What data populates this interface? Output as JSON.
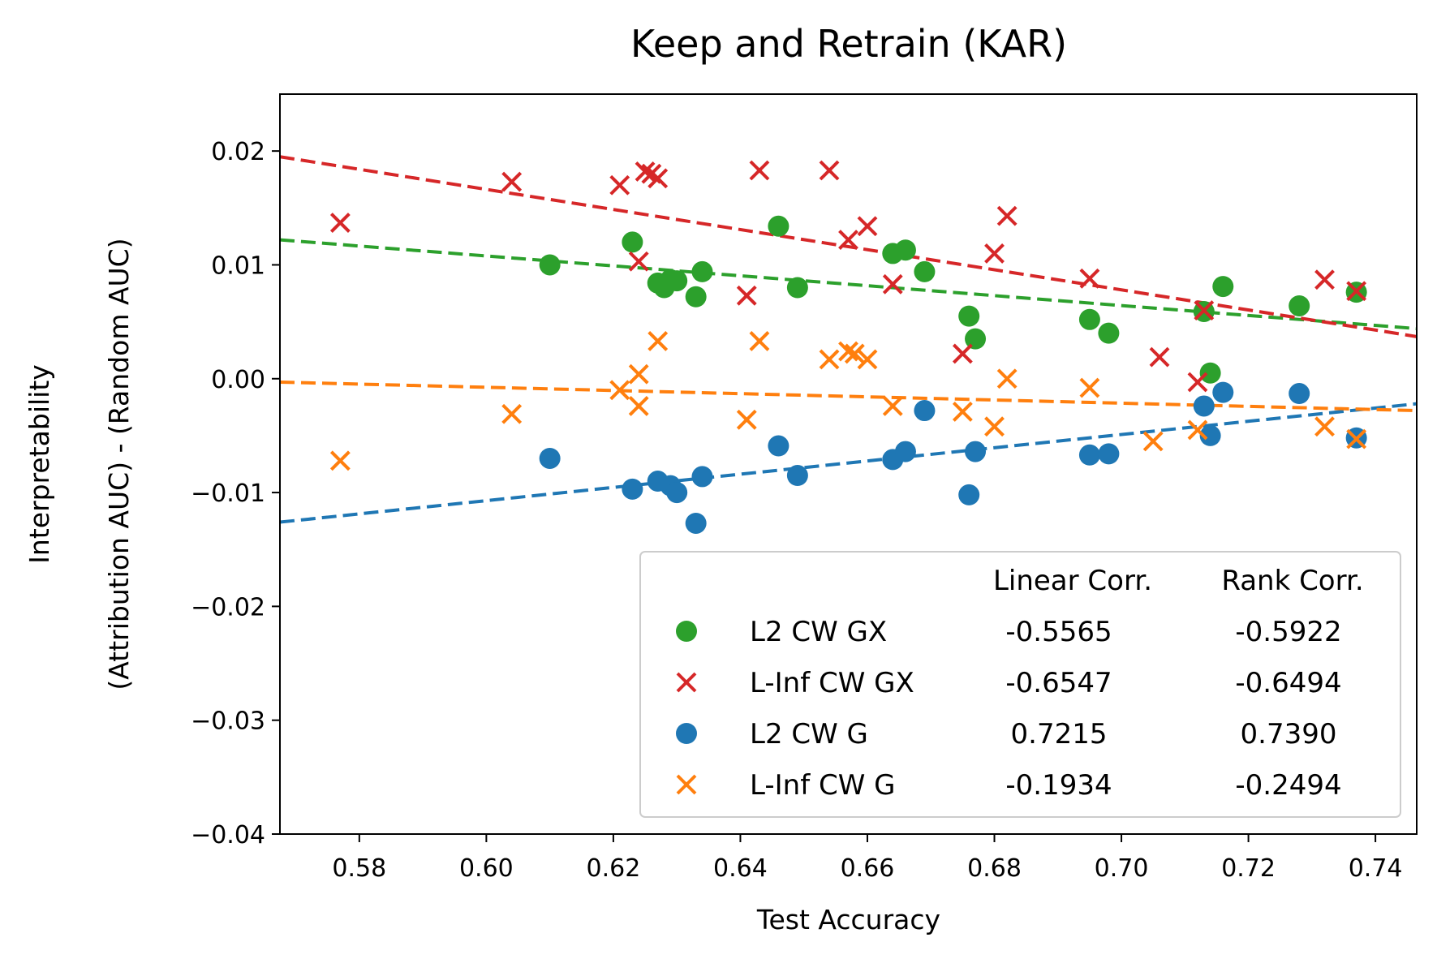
{
  "chart_data": {
    "type": "scatter",
    "title": "Keep and Retrain (KAR)",
    "xlabel": "Test Accuracy",
    "ylabel_lines": [
      "Interpretability",
      "(Attribution AUC) - (Random AUC)"
    ],
    "xlim": [
      0.5675,
      0.7465
    ],
    "ylim": [
      -0.04,
      0.025
    ],
    "xticks": [
      0.58,
      0.6,
      0.62,
      0.64,
      0.66,
      0.68,
      0.7,
      0.72,
      0.74
    ],
    "xtick_labels": [
      "0.58",
      "0.60",
      "0.62",
      "0.64",
      "0.66",
      "0.68",
      "0.70",
      "0.72",
      "0.74"
    ],
    "yticks": [
      0.02,
      0.01,
      0.0,
      -0.01,
      -0.02,
      -0.03,
      -0.04
    ],
    "ytick_labels": [
      "0.02",
      "0.01",
      "0.00",
      "−0.01",
      "−0.02",
      "−0.03",
      "−0.04"
    ],
    "grid": false,
    "legend": {
      "placement": "lower-right",
      "header": [
        "Linear Corr.",
        "Rank Corr."
      ],
      "entries": [
        {
          "label": "L2 CW GX",
          "linear": "-0.5565",
          "rank": "-0.5922",
          "color": "#2ca02c",
          "marker": "circle"
        },
        {
          "label": "L-Inf CW GX",
          "linear": "-0.6547",
          "rank": "-0.6494",
          "color": "#d62728",
          "marker": "x"
        },
        {
          "label": "L2 CW G",
          "linear": "0.7215",
          "rank": "0.7390",
          "color": "#1f77b4",
          "marker": "circle"
        },
        {
          "label": "L-Inf CW G",
          "linear": "-0.1934",
          "rank": "-0.2494",
          "color": "#ff7f0e",
          "marker": "x"
        }
      ]
    },
    "series": [
      {
        "color": "#2ca02c",
        "marker": "circle",
        "trend": [
          [
            0.5675,
            0.0122
          ],
          [
            0.7465,
            0.0044
          ]
        ],
        "points": [
          [
            0.61,
            0.01
          ],
          [
            0.623,
            0.012
          ],
          [
            0.627,
            0.0084
          ],
          [
            0.628,
            0.008
          ],
          [
            0.629,
            0.0087
          ],
          [
            0.63,
            0.0086
          ],
          [
            0.633,
            0.0072
          ],
          [
            0.634,
            0.0094
          ],
          [
            0.646,
            0.0134
          ],
          [
            0.649,
            0.008
          ],
          [
            0.664,
            0.011
          ],
          [
            0.666,
            0.0113
          ],
          [
            0.669,
            0.0094
          ],
          [
            0.676,
            0.0055
          ],
          [
            0.677,
            0.0035
          ],
          [
            0.695,
            0.0052
          ],
          [
            0.698,
            0.004
          ],
          [
            0.713,
            0.0059
          ],
          [
            0.714,
            0.0005
          ],
          [
            0.716,
            0.0081
          ],
          [
            0.728,
            0.0064
          ],
          [
            0.737,
            0.0076
          ]
        ]
      },
      {
        "color": "#d62728",
        "marker": "x",
        "trend": [
          [
            0.5675,
            0.0195
          ],
          [
            0.7465,
            0.0037
          ]
        ],
        "points": [
          [
            0.577,
            0.0137
          ],
          [
            0.604,
            0.0173
          ],
          [
            0.621,
            0.017
          ],
          [
            0.624,
            0.0103
          ],
          [
            0.625,
            0.0182
          ],
          [
            0.626,
            0.018
          ],
          [
            0.627,
            0.0176
          ],
          [
            0.641,
            0.0073
          ],
          [
            0.643,
            0.0183
          ],
          [
            0.654,
            0.0183
          ],
          [
            0.657,
            0.0122
          ],
          [
            0.66,
            0.0134
          ],
          [
            0.664,
            0.0083
          ],
          [
            0.675,
            0.0022
          ],
          [
            0.68,
            0.011
          ],
          [
            0.682,
            0.0143
          ],
          [
            0.695,
            0.0088
          ],
          [
            0.706,
            0.0019
          ],
          [
            0.712,
            -0.0003
          ],
          [
            0.713,
            0.006
          ],
          [
            0.732,
            0.0087
          ],
          [
            0.737,
            0.0077
          ]
        ]
      },
      {
        "color": "#1f77b4",
        "marker": "circle",
        "trend": [
          [
            0.5675,
            -0.0126
          ],
          [
            0.7465,
            -0.0022
          ]
        ],
        "points": [
          [
            0.61,
            -0.007
          ],
          [
            0.623,
            -0.0097
          ],
          [
            0.627,
            -0.009
          ],
          [
            0.629,
            -0.0094
          ],
          [
            0.63,
            -0.01
          ],
          [
            0.633,
            -0.0127
          ],
          [
            0.634,
            -0.0086
          ],
          [
            0.646,
            -0.0059
          ],
          [
            0.649,
            -0.0085
          ],
          [
            0.664,
            -0.0071
          ],
          [
            0.666,
            -0.0064
          ],
          [
            0.669,
            -0.0028
          ],
          [
            0.676,
            -0.0102
          ],
          [
            0.677,
            -0.0064
          ],
          [
            0.695,
            -0.0067
          ],
          [
            0.698,
            -0.0066
          ],
          [
            0.713,
            -0.0024
          ],
          [
            0.714,
            -0.005
          ],
          [
            0.716,
            -0.0012
          ],
          [
            0.728,
            -0.0013
          ],
          [
            0.737,
            -0.0052
          ]
        ]
      },
      {
        "color": "#ff7f0e",
        "marker": "x",
        "trend": [
          [
            0.5675,
            -0.0003
          ],
          [
            0.7465,
            -0.0028
          ]
        ],
        "points": [
          [
            0.577,
            -0.0072
          ],
          [
            0.604,
            -0.0031
          ],
          [
            0.621,
            -0.001
          ],
          [
            0.624,
            0.0004
          ],
          [
            0.624,
            -0.0024
          ],
          [
            0.627,
            0.0033
          ],
          [
            0.641,
            -0.0036
          ],
          [
            0.643,
            0.0033
          ],
          [
            0.654,
            0.0017
          ],
          [
            0.657,
            0.0024
          ],
          [
            0.658,
            0.0022
          ],
          [
            0.66,
            0.0017
          ],
          [
            0.664,
            -0.0024
          ],
          [
            0.675,
            -0.0029
          ],
          [
            0.68,
            -0.0042
          ],
          [
            0.682,
            0.0
          ],
          [
            0.695,
            -0.0008
          ],
          [
            0.705,
            -0.0055
          ],
          [
            0.712,
            -0.0045
          ],
          [
            0.732,
            -0.0042
          ],
          [
            0.737,
            -0.0053
          ]
        ]
      }
    ]
  }
}
